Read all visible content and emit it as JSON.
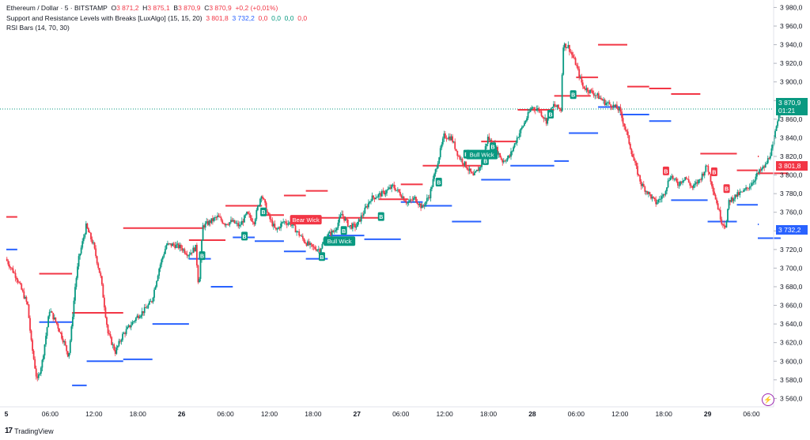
{
  "legend": {
    "symbol": "Ethereum / Dollar · 5 · BITSTAMP",
    "o_label": "O",
    "o_val": "3 871,2",
    "h_label": "H",
    "h_val": "3 875,1",
    "l_label": "B",
    "l_val": "3 870,9",
    "c_label": "C",
    "c_val": "3 870,9",
    "change": "+0,2 (+0,01%)",
    "indicator1": "Support and Resistance Levels with Breaks [LuxAlgo] (15, 15, 20)",
    "ind1_v1": "3 801,8",
    "ind1_v2": "3 732,2",
    "ind1_v3": "0,0",
    "ind1_v4": "0,0",
    "ind1_v5": "0,0",
    "ind1_v6": "0,0",
    "indicator2": "RSI Bars (14, 70, 30)"
  },
  "brand": "TradingView",
  "price_tags": {
    "last": "3 870,9",
    "countdown": "01:21",
    "resistance": "3 801,8",
    "support": "3 732,2"
  },
  "colors": {
    "up": "#089981",
    "down": "#f23645",
    "resistance": "#f23645",
    "support": "#2962ff",
    "bull_label": "#089981",
    "bear_label": "#f23645"
  },
  "chart_data": {
    "type": "candlestick",
    "y_ticks": [
      "3 980,0",
      "3 960,0",
      "3 940,0",
      "3 920,0",
      "3 900,0",
      "3 880,0",
      "3 860,0",
      "3 840,0",
      "3 820,0",
      "3 800,0",
      "3 780,0",
      "3 760,0",
      "3 740,0",
      "3 720,0",
      "3 700,0",
      "3 680,0",
      "3 660,0",
      "3 640,0",
      "3 620,0",
      "3 600,0",
      "3 580,0",
      "3 560,0"
    ],
    "y_tick_values": [
      3980,
      3960,
      3940,
      3920,
      3900,
      3880,
      3860,
      3840,
      3820,
      3800,
      3780,
      3760,
      3740,
      3720,
      3700,
      3680,
      3660,
      3640,
      3620,
      3600,
      3580,
      3560
    ],
    "ylim": [
      3551,
      3988
    ],
    "x_labels": [
      "5",
      "06:00",
      "12:00",
      "18:00",
      "26",
      "06:00",
      "12:00",
      "18:00",
      "27",
      "06:00",
      "12:00",
      "18:00",
      "28",
      "06:00",
      "12:00",
      "18:00",
      "29",
      "06:00"
    ],
    "x_label_hours": [
      0,
      6,
      12,
      18,
      24,
      30,
      36,
      42,
      48,
      54,
      60,
      66,
      72,
      78,
      84,
      90,
      96,
      102
    ],
    "x_bold": [
      "5",
      "26",
      "27",
      "28",
      "29"
    ],
    "x_range_hours": [
      0,
      106.5
    ],
    "price_path": [
      [
        0,
        3710
      ],
      [
        1.5,
        3690
      ],
      [
        3,
        3660
      ],
      [
        3.5,
        3620
      ],
      [
        4.3,
        3578
      ],
      [
        5,
        3600
      ],
      [
        6,
        3655
      ],
      [
        7,
        3640
      ],
      [
        8,
        3620
      ],
      [
        8.6,
        3605
      ],
      [
        9,
        3635
      ],
      [
        9.5,
        3680
      ],
      [
        10,
        3710
      ],
      [
        11,
        3745
      ],
      [
        12,
        3725
      ],
      [
        13,
        3690
      ],
      [
        13.5,
        3660
      ],
      [
        14,
        3630
      ],
      [
        15,
        3610
      ],
      [
        16,
        3628
      ],
      [
        17,
        3638
      ],
      [
        18,
        3648
      ],
      [
        19,
        3655
      ],
      [
        20,
        3665
      ],
      [
        21,
        3700
      ],
      [
        22,
        3725
      ],
      [
        23,
        3725
      ],
      [
        24,
        3722
      ],
      [
        25,
        3715
      ],
      [
        26,
        3722
      ],
      [
        26.4,
        3680
      ],
      [
        27,
        3745
      ],
      [
        28,
        3750
      ],
      [
        29,
        3755
      ],
      [
        30,
        3748
      ],
      [
        31,
        3750
      ],
      [
        32,
        3745
      ],
      [
        33,
        3758
      ],
      [
        34,
        3750
      ],
      [
        35,
        3780
      ],
      [
        36,
        3755
      ],
      [
        37,
        3740
      ],
      [
        38,
        3750
      ],
      [
        39,
        3748
      ],
      [
        40,
        3738
      ],
      [
        41,
        3728
      ],
      [
        42,
        3722
      ],
      [
        43,
        3720
      ],
      [
        44,
        3735
      ],
      [
        45,
        3740
      ],
      [
        46,
        3758
      ],
      [
        47,
        3745
      ],
      [
        48,
        3745
      ],
      [
        49,
        3760
      ],
      [
        50,
        3775
      ],
      [
        51,
        3778
      ],
      [
        52,
        3782
      ],
      [
        53,
        3788
      ],
      [
        54,
        3780
      ],
      [
        55,
        3770
      ],
      [
        56,
        3775
      ],
      [
        57,
        3765
      ],
      [
        58,
        3778
      ],
      [
        59,
        3810
      ],
      [
        60,
        3842
      ],
      [
        61,
        3840
      ],
      [
        62,
        3820
      ],
      [
        63,
        3810
      ],
      [
        64,
        3798
      ],
      [
        65,
        3810
      ],
      [
        66,
        3840
      ],
      [
        67,
        3830
      ],
      [
        68,
        3815
      ],
      [
        69,
        3820
      ],
      [
        70,
        3840
      ],
      [
        71,
        3856
      ],
      [
        72,
        3873
      ],
      [
        73,
        3870
      ],
      [
        74,
        3858
      ],
      [
        75,
        3875
      ],
      [
        76,
        3870
      ],
      [
        76.3,
        3940
      ],
      [
        77,
        3938
      ],
      [
        78,
        3920
      ],
      [
        79,
        3895
      ],
      [
        80,
        3890
      ],
      [
        81,
        3885
      ],
      [
        82,
        3878
      ],
      [
        83,
        3875
      ],
      [
        84,
        3870
      ],
      [
        85,
        3845
      ],
      [
        86,
        3815
      ],
      [
        87,
        3790
      ],
      [
        88,
        3780
      ],
      [
        89,
        3770
      ],
      [
        90,
        3778
      ],
      [
        91,
        3800
      ],
      [
        92,
        3790
      ],
      [
        93,
        3798
      ],
      [
        94,
        3786
      ],
      [
        95,
        3795
      ],
      [
        96,
        3810
      ],
      [
        97,
        3780
      ],
      [
        98,
        3750
      ],
      [
        98.6,
        3745
      ],
      [
        99,
        3772
      ],
      [
        100,
        3778
      ],
      [
        101,
        3782
      ],
      [
        102,
        3790
      ],
      [
        103,
        3802
      ],
      [
        104,
        3810
      ],
      [
        105,
        3830
      ],
      [
        106,
        3875
      ],
      [
        106.5,
        3870.9
      ]
    ],
    "resistance_lines": [
      [
        0,
        1.5,
        3755
      ],
      [
        4.5,
        9,
        3694
      ],
      [
        9,
        16,
        3652
      ],
      [
        16,
        27,
        3743
      ],
      [
        25,
        30,
        3730
      ],
      [
        30,
        35,
        3767
      ],
      [
        35,
        38,
        3757
      ],
      [
        38,
        41,
        3778
      ],
      [
        41,
        44,
        3783
      ],
      [
        43,
        46,
        3754
      ],
      [
        46,
        51,
        3754
      ],
      [
        51,
        55,
        3774
      ],
      [
        54,
        57,
        3790
      ],
      [
        57,
        65,
        3810
      ],
      [
        65,
        70,
        3836
      ],
      [
        70,
        75,
        3870
      ],
      [
        75,
        80,
        3885
      ],
      [
        78,
        81,
        3905
      ],
      [
        81,
        85,
        3940
      ],
      [
        85,
        88,
        3895
      ],
      [
        88,
        91,
        3893
      ],
      [
        91,
        95,
        3887
      ],
      [
        95,
        100,
        3823
      ],
      [
        100,
        106,
        3805
      ],
      [
        103,
        107,
        3820
      ],
      [
        107,
        112,
        3801.8
      ]
    ],
    "support_lines": [
      [
        0,
        1.5,
        3720
      ],
      [
        4.5,
        9,
        3642
      ],
      [
        9,
        11,
        3574
      ],
      [
        11,
        16,
        3600
      ],
      [
        16,
        20,
        3602
      ],
      [
        20,
        25,
        3640
      ],
      [
        25,
        28,
        3710
      ],
      [
        28,
        31,
        3680
      ],
      [
        31,
        34,
        3733
      ],
      [
        34,
        38,
        3729
      ],
      [
        38,
        41,
        3718
      ],
      [
        41,
        44,
        3710
      ],
      [
        44,
        49,
        3735
      ],
      [
        49,
        54,
        3731
      ],
      [
        54,
        57,
        3771
      ],
      [
        57,
        61,
        3767
      ],
      [
        61,
        65,
        3750
      ],
      [
        65,
        69,
        3795
      ],
      [
        69,
        75,
        3810
      ],
      [
        75,
        77,
        3815
      ],
      [
        77,
        81,
        3845
      ],
      [
        81,
        84,
        3873
      ],
      [
        84,
        88,
        3865
      ],
      [
        88,
        91,
        3858
      ],
      [
        91,
        96,
        3773
      ],
      [
        96,
        100,
        3750
      ],
      [
        100,
        103,
        3768
      ],
      [
        103,
        106,
        3747
      ],
      [
        106,
        110,
        3732.2
      ]
    ],
    "break_markers": [
      {
        "t": 26.8,
        "p": 3713,
        "type": "B"
      },
      {
        "t": 32.6,
        "p": 3734,
        "type": "B"
      },
      {
        "t": 35.2,
        "p": 3760,
        "type": "B"
      },
      {
        "t": 43.2,
        "p": 3712,
        "type": "B"
      },
      {
        "t": 46.2,
        "p": 3740,
        "type": "B"
      },
      {
        "t": 51.3,
        "p": 3755,
        "type": "B"
      },
      {
        "t": 59.2,
        "p": 3792,
        "type": "B"
      },
      {
        "t": 63,
        "p": 3822,
        "type": "B"
      },
      {
        "t": 65.6,
        "p": 3815,
        "type": "B"
      },
      {
        "t": 66.6,
        "p": 3830,
        "type": "B"
      },
      {
        "t": 74.5,
        "p": 3865,
        "type": "B"
      },
      {
        "t": 77.6,
        "p": 3886,
        "type": "B"
      },
      {
        "t": 90.3,
        "p": 3804,
        "type": "R"
      },
      {
        "t": 96.9,
        "p": 3803,
        "type": "R"
      },
      {
        "t": 98.6,
        "p": 3785,
        "type": "R"
      }
    ],
    "wick_labels": [
      {
        "t": 41,
        "p": 3752,
        "text": "Bear Wick",
        "type": "bear"
      },
      {
        "t": 45.6,
        "p": 3729,
        "text": "Bull Wick",
        "type": "bull"
      },
      {
        "t": 65.1,
        "p": 3822,
        "text": "Bull Wick",
        "type": "bull"
      }
    ],
    "last_price": 3870.9
  }
}
